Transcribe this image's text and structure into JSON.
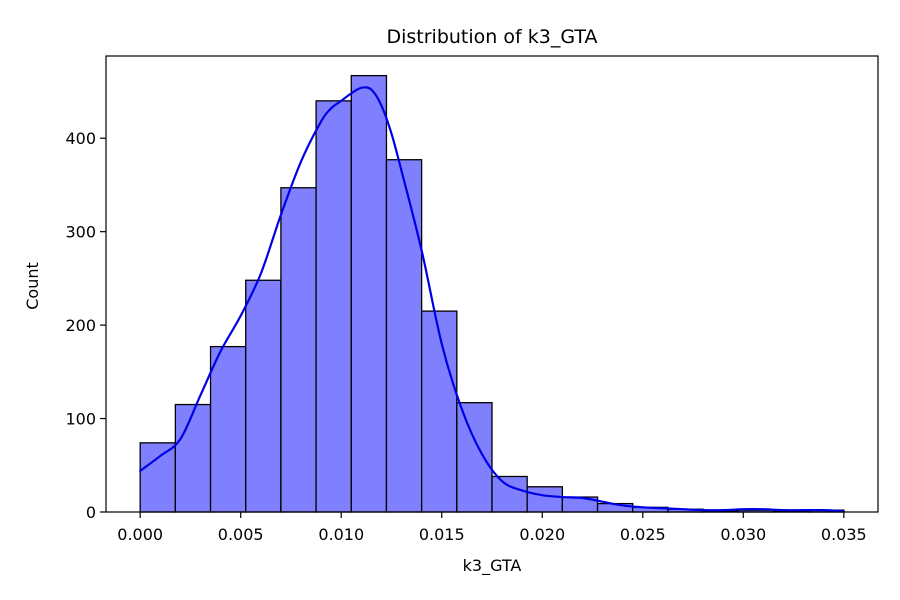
{
  "chart_data": {
    "type": "bar",
    "title": "Distribution of k3_GTA",
    "xlabel": "k3_GTA",
    "ylabel": "Count",
    "xlim": [
      -0.0017,
      0.0367
    ],
    "ylim": [
      0,
      488
    ],
    "xticks": [
      0.0,
      0.005,
      0.01,
      0.015,
      0.02,
      0.025,
      0.03,
      0.035
    ],
    "xtick_labels": [
      "0.000",
      "0.005",
      "0.010",
      "0.015",
      "0.020",
      "0.025",
      "0.030",
      "0.035"
    ],
    "yticks": [
      0,
      100,
      200,
      300,
      400
    ],
    "ytick_labels": [
      "0",
      "100",
      "200",
      "300",
      "400"
    ],
    "bin_edges": [
      0.0,
      0.00175,
      0.0035,
      0.00525,
      0.007,
      0.00875,
      0.0105,
      0.01225,
      0.014,
      0.01575,
      0.0175,
      0.01925,
      0.021,
      0.02275,
      0.0245,
      0.02625,
      0.028,
      0.02975,
      0.0315,
      0.03325,
      0.035
    ],
    "counts": [
      74,
      115,
      177,
      248,
      347,
      440,
      467,
      377,
      215,
      117,
      38,
      27,
      16,
      9,
      5,
      3,
      1,
      2,
      1,
      2
    ],
    "kde": {
      "x": [
        0.0,
        0.001,
        0.002,
        0.003,
        0.004,
        0.005,
        0.006,
        0.007,
        0.008,
        0.009,
        0.0095,
        0.01,
        0.0105,
        0.011,
        0.0115,
        0.012,
        0.0125,
        0.013,
        0.014,
        0.015,
        0.016,
        0.017,
        0.018,
        0.019,
        0.02,
        0.021,
        0.022,
        0.023,
        0.024,
        0.025,
        0.026,
        0.027,
        0.028,
        0.029,
        0.03,
        0.031,
        0.032,
        0.033,
        0.034,
        0.035
      ],
      "y": [
        44,
        60,
        78,
        125,
        172,
        210,
        255,
        318,
        375,
        418,
        432,
        440,
        448,
        454,
        452,
        435,
        405,
        365,
        280,
        180,
        110,
        62,
        33,
        23,
        18,
        16,
        15,
        11,
        7,
        5,
        4,
        3,
        2,
        2,
        3,
        3,
        2,
        2,
        2,
        1
      ]
    },
    "bar_color": "#8080ff",
    "bar_edge_color": "#000000",
    "kde_color": "#0000e6",
    "grid": false,
    "legend": "none"
  }
}
